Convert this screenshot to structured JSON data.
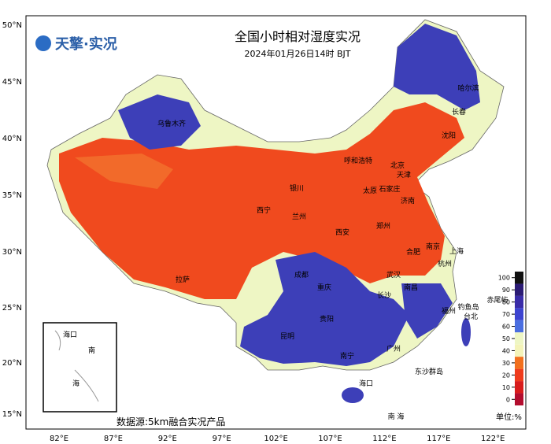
{
  "header": {
    "logo": "天擎·实况",
    "title": "全国小时相对湿度实况",
    "subtitle": "2024年01月26日14时 BJT"
  },
  "lat_labels": [
    "50°N",
    "45°N",
    "40°N",
    "35°N",
    "30°N",
    "25°N",
    "20°N",
    "15°N"
  ],
  "lon_labels": [
    "82°E",
    "87°E",
    "92°E",
    "97°E",
    "102°E",
    "107°E",
    "112°E",
    "117°E",
    "122°E"
  ],
  "cities": [
    "乌鲁木齐",
    "哈尔滨",
    "长春",
    "沈阳",
    "呼和浩特",
    "北京",
    "天津",
    "银川",
    "太原",
    "石家庄",
    "济南",
    "西宁",
    "兰州",
    "西安",
    "郑州",
    "合肥",
    "南京",
    "上海",
    "杭州",
    "拉萨",
    "成都",
    "武汉",
    "重庆",
    "长沙",
    "南昌",
    "福州",
    "台北",
    "钓鱼岛",
    "赤尾屿",
    "贵阳",
    "昆明",
    "南宁",
    "广州",
    "东沙群岛",
    "海口",
    "南 海"
  ],
  "inset": {
    "labels": [
      "海口",
      "南",
      "海"
    ]
  },
  "legend": {
    "labels": [
      100,
      90,
      80,
      70,
      60,
      50,
      40,
      30,
      20,
      10,
      0
    ],
    "colors": [
      "#111111",
      "#2b1b74",
      "#3a2ca8",
      "#3d44d0",
      "#4a6ee0",
      "#eef6c4",
      "#f4f3b8",
      "#f2701e",
      "#ef3b1c",
      "#d81c1c",
      "#b30d2e"
    ],
    "unit": "单位:%"
  },
  "footer": {
    "source": "数据源:5km融合实况产品"
  }
}
